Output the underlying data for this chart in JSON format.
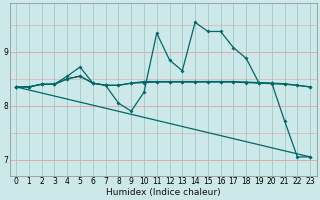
{
  "title": "",
  "xlabel": "Humidex (Indice chaleur)",
  "bg_color": "#cce8e8",
  "plot_bg_color": "#cce8e8",
  "hgrid_color": "#e8a0a0",
  "vgrid_color": "#a0c8c8",
  "line_color": "#006868",
  "xlim": [
    -0.5,
    23.5
  ],
  "ylim": [
    6.7,
    9.9
  ],
  "yticks": [
    7,
    8,
    9
  ],
  "xticks": [
    0,
    1,
    2,
    3,
    4,
    5,
    6,
    7,
    8,
    9,
    10,
    11,
    12,
    13,
    14,
    15,
    16,
    17,
    18,
    19,
    20,
    21,
    22,
    23
  ],
  "series1_x": [
    0,
    1,
    2,
    3,
    4,
    5,
    6,
    7,
    8,
    9,
    10,
    11,
    12,
    13,
    14,
    15,
    16,
    17,
    18,
    19,
    20,
    21,
    22,
    23
  ],
  "series1_y": [
    8.35,
    8.35,
    8.4,
    8.4,
    8.55,
    8.72,
    8.42,
    8.38,
    8.05,
    7.9,
    8.25,
    9.35,
    8.85,
    8.65,
    9.55,
    9.38,
    9.38,
    9.08,
    8.88,
    8.42,
    8.42,
    7.72,
    7.05,
    7.05
  ],
  "series2_x": [
    0,
    1,
    2,
    3,
    4,
    5,
    6,
    7,
    8,
    9,
    10,
    11,
    12,
    13,
    14,
    15,
    16,
    17,
    18,
    19,
    20,
    21,
    22,
    23
  ],
  "series2_y": [
    8.35,
    8.35,
    8.4,
    8.4,
    8.5,
    8.55,
    8.42,
    8.38,
    8.38,
    8.42,
    8.45,
    8.45,
    8.45,
    8.45,
    8.45,
    8.45,
    8.45,
    8.45,
    8.44,
    8.43,
    8.42,
    8.41,
    8.38,
    8.35
  ],
  "series3_x": [
    0,
    1,
    2,
    3,
    4,
    5,
    6,
    7,
    8,
    9,
    10,
    11,
    12,
    13,
    14,
    15,
    16,
    17,
    18,
    19,
    20,
    21,
    22,
    23
  ],
  "series3_y": [
    8.35,
    8.35,
    8.4,
    8.4,
    8.5,
    8.55,
    8.42,
    8.38,
    8.38,
    8.42,
    8.43,
    8.44,
    8.44,
    8.44,
    8.44,
    8.44,
    8.44,
    8.44,
    8.43,
    8.42,
    8.41,
    8.4,
    8.38,
    8.35
  ],
  "series4_x": [
    0,
    23
  ],
  "series4_y": [
    8.35,
    7.05
  ],
  "marker_size": 2.0,
  "linewidth": 0.9,
  "tick_fontsize": 5.5,
  "xlabel_fontsize": 6.5
}
